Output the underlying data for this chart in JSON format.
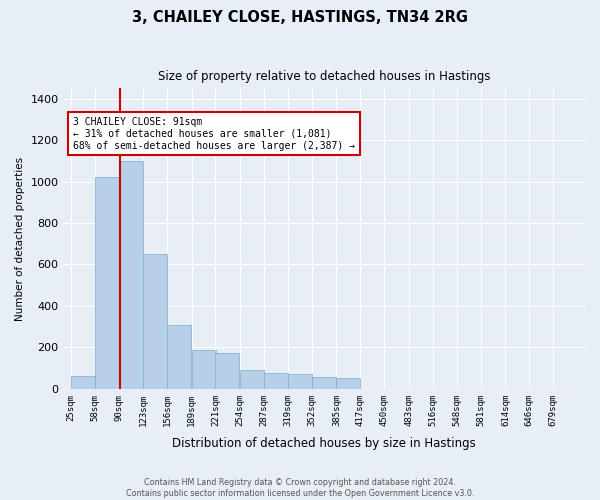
{
  "title": "3, CHAILEY CLOSE, HASTINGS, TN34 2RG",
  "subtitle": "Size of property relative to detached houses in Hastings",
  "xlabel": "Distribution of detached houses by size in Hastings",
  "ylabel": "Number of detached properties",
  "footer_line1": "Contains HM Land Registry data © Crown copyright and database right 2024.",
  "footer_line2": "Contains public sector information licensed under the Open Government Licence v3.0.",
  "annotation_line1": "3 CHAILEY CLOSE: 91sqm",
  "annotation_line2": "← 31% of detached houses are smaller (1,081)",
  "annotation_line3": "68% of semi-detached houses are larger (2,387) →",
  "property_size": 91,
  "bin_starts": [
    25,
    58,
    90,
    123,
    156,
    189,
    221,
    254,
    287,
    319,
    352,
    385,
    417,
    450,
    483,
    516,
    548,
    581,
    614,
    646,
    679
  ],
  "bin_labels": [
    "25sqm",
    "58sqm",
    "90sqm",
    "123sqm",
    "156sqm",
    "189sqm",
    "221sqm",
    "254sqm",
    "287sqm",
    "319sqm",
    "352sqm",
    "385sqm",
    "417sqm",
    "450sqm",
    "483sqm",
    "516sqm",
    "548sqm",
    "581sqm",
    "614sqm",
    "646sqm",
    "679sqm"
  ],
  "values": [
    60,
    1020,
    1100,
    650,
    310,
    185,
    175,
    90,
    75,
    70,
    55,
    50,
    0,
    0,
    0,
    0,
    0,
    0,
    0,
    0,
    0
  ],
  "bar_color": "#b8cfe8",
  "bar_edge_color": "#7aaed4",
  "red_line_color": "#cc0000",
  "annotation_box_edge": "#cc0000",
  "annotation_box_face": "#ffffff",
  "background_color": "#e8eef5",
  "plot_background": "#e8eef5",
  "ylim": [
    0,
    1450
  ],
  "yticks": [
    0,
    200,
    400,
    600,
    800,
    1000,
    1200,
    1400
  ],
  "fig_width": 6.0,
  "fig_height": 5.0,
  "fig_dpi": 100
}
